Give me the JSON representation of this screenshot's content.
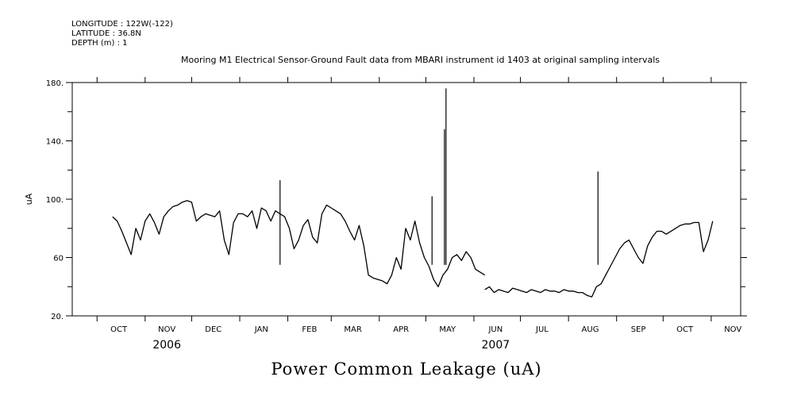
{
  "header": {
    "longitude": "LONGITUDE : 122W(-122)",
    "latitude": "LATITUDE : 36.8N",
    "depth": "DEPTH (m) : 1"
  },
  "chart_data": {
    "type": "line",
    "title": "Mooring M1 Electrical Sensor-Ground Fault data from MBARI instrument id 1403 at original sampling intervals",
    "xlabel": "Power Common Leakage (uA)",
    "ylabel": "uA",
    "ylim": [
      20,
      180
    ],
    "yticks": [
      20,
      60,
      100,
      140,
      180
    ],
    "ytick_labels": [
      "20.",
      "60",
      "100.",
      "140.",
      "180."
    ],
    "xlim": [
      "2006-09-15",
      "2007-11-20"
    ],
    "month_labels": [
      {
        "label": "OCT",
        "date": "2006-10-15"
      },
      {
        "label": "NOV",
        "date": "2006-11-15"
      },
      {
        "label": "DEC",
        "date": "2006-12-15"
      },
      {
        "label": "JAN",
        "date": "2007-01-15"
      },
      {
        "label": "FEB",
        "date": "2007-02-15"
      },
      {
        "label": "MAR",
        "date": "2007-03-15"
      },
      {
        "label": "APR",
        "date": "2007-04-15"
      },
      {
        "label": "MAY",
        "date": "2007-05-15"
      },
      {
        "label": "JUN",
        "date": "2007-06-15"
      },
      {
        "label": "JUL",
        "date": "2007-07-15"
      },
      {
        "label": "AUG",
        "date": "2007-08-15"
      },
      {
        "label": "SEP",
        "date": "2007-09-15"
      },
      {
        "label": "OCT",
        "date": "2007-10-15"
      },
      {
        "label": "NOV",
        "date": "2007-11-15"
      }
    ],
    "year_labels": [
      {
        "label": "2006",
        "date": "2006-11-15"
      },
      {
        "label": "2007",
        "date": "2007-06-15"
      }
    ],
    "series": [
      {
        "color": "#000000",
        "segments": [
          {
            "x": [
              "2006-10-11",
              "2006-10-14",
              "2006-10-17",
              "2006-10-20",
              "2006-10-23",
              "2006-10-26",
              "2006-10-29",
              "2006-11-01",
              "2006-11-04",
              "2006-11-07",
              "2006-11-10",
              "2006-11-13",
              "2006-11-16",
              "2006-11-19",
              "2006-11-22",
              "2006-11-25",
              "2006-11-28",
              "2006-12-01",
              "2006-12-04",
              "2006-12-07",
              "2006-12-10",
              "2006-12-13",
              "2006-12-16",
              "2006-12-19",
              "2006-12-22",
              "2006-12-25",
              "2006-12-28",
              "2006-12-31",
              "2007-01-03",
              "2007-01-06",
              "2007-01-09",
              "2007-01-12",
              "2007-01-15",
              "2007-01-18",
              "2007-01-21",
              "2007-01-24",
              "2007-01-27",
              "2007-01-30",
              "2007-02-02",
              "2007-02-05",
              "2007-02-08",
              "2007-02-11",
              "2007-02-14",
              "2007-02-17",
              "2007-02-20",
              "2007-02-23",
              "2007-02-26",
              "2007-03-01",
              "2007-03-04",
              "2007-03-07",
              "2007-03-10",
              "2007-03-13",
              "2007-03-16",
              "2007-03-19",
              "2007-03-22",
              "2007-03-25",
              "2007-03-28",
              "2007-03-31",
              "2007-04-03",
              "2007-04-06",
              "2007-04-09",
              "2007-04-12",
              "2007-04-15",
              "2007-04-18",
              "2007-04-21",
              "2007-04-24",
              "2007-04-27",
              "2007-04-30",
              "2007-05-03",
              "2007-05-06",
              "2007-05-09",
              "2007-05-12",
              "2007-05-15",
              "2007-05-18",
              "2007-05-21",
              "2007-05-24",
              "2007-05-27",
              "2007-05-30",
              "2007-06-02",
              "2007-06-05",
              "2007-06-08"
            ],
            "y": [
              88,
              85,
              78,
              70,
              62,
              80,
              72,
              85,
              90,
              84,
              76,
              88,
              92,
              95,
              96,
              98,
              99,
              98,
              85,
              88,
              90,
              89,
              88,
              92,
              72,
              62,
              84,
              90,
              90,
              88,
              92,
              80,
              94,
              92,
              85,
              92,
              90,
              88,
              80,
              66,
              72,
              82,
              86,
              74,
              70,
              90,
              96,
              94,
              92,
              90,
              85,
              78,
              72,
              82,
              68,
              48,
              46,
              45,
              44,
              42,
              48,
              60,
              52,
              80,
              72,
              85,
              70,
              60,
              54,
              45,
              40,
              48,
              52,
              60,
              62,
              58,
              64,
              60,
              52,
              50,
              48
            ]
          },
          {
            "x": [
              "2007-06-08",
              "2007-06-11",
              "2007-06-14",
              "2007-06-17",
              "2007-06-20",
              "2007-06-23",
              "2007-06-26",
              "2007-06-29",
              "2007-07-02",
              "2007-07-05",
              "2007-07-08",
              "2007-07-11",
              "2007-07-14",
              "2007-07-17",
              "2007-07-20",
              "2007-07-23",
              "2007-07-26",
              "2007-07-29",
              "2007-08-01",
              "2007-08-04",
              "2007-08-07",
              "2007-08-10",
              "2007-08-13",
              "2007-08-16",
              "2007-08-19",
              "2007-08-22",
              "2007-08-25",
              "2007-08-28",
              "2007-08-31",
              "2007-09-03",
              "2007-09-06",
              "2007-09-09",
              "2007-09-12",
              "2007-09-15",
              "2007-09-18",
              "2007-09-21",
              "2007-09-24",
              "2007-09-27",
              "2007-09-30",
              "2007-10-03",
              "2007-10-06",
              "2007-10-09",
              "2007-10-12",
              "2007-10-15",
              "2007-10-18",
              "2007-10-21",
              "2007-10-24",
              "2007-10-27",
              "2007-10-30",
              "2007-11-02"
            ],
            "y": [
              38,
              40,
              36,
              38,
              37,
              36,
              39,
              38,
              37,
              36,
              38,
              37,
              36,
              38,
              37,
              37,
              36,
              38,
              37,
              37,
              36,
              36,
              34,
              33,
              40,
              42,
              48,
              54,
              60,
              66,
              70,
              72,
              66,
              60,
              56,
              68,
              74,
              78,
              78,
              76,
              78,
              80,
              82,
              83,
              83,
              84,
              84,
              64,
              72,
              85
            ]
          }
        ]
      }
    ],
    "spikes": [
      {
        "x": "2007-05-14",
        "y": 176
      },
      {
        "x": "2007-05-13",
        "y": 148
      },
      {
        "x": "2007-08-20",
        "y": 119
      },
      {
        "x": "2007-01-27",
        "y": 113
      },
      {
        "x": "2007-05-05",
        "y": 102
      }
    ]
  }
}
